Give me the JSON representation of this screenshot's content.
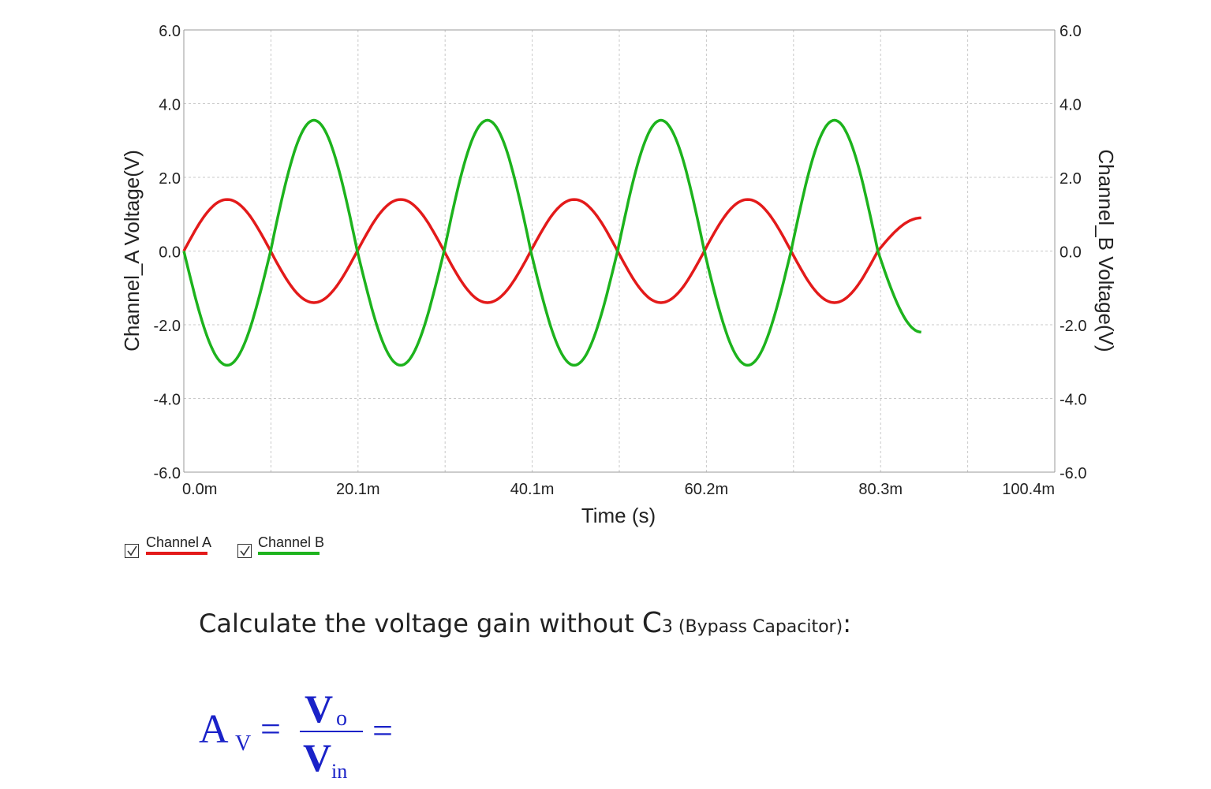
{
  "chart_data": {
    "type": "line",
    "xlabel": "Time (s)",
    "ylabel_left": "Channel_A Voltage(V)",
    "ylabel_right": "Channel_B Voltage(V)",
    "x_ticks": [
      "0.0m",
      "20.1m",
      "40.1m",
      "60.2m",
      "80.3m",
      "100.4m"
    ],
    "y_ticks": [
      "6.0",
      "4.0",
      "2.0",
      "0.0",
      "-2.0",
      "-4.0",
      "-6.0"
    ],
    "xlim": [
      0,
      0.1004
    ],
    "ylim": [
      -6,
      6
    ],
    "grid": true,
    "legend": "bottom-left",
    "series": [
      {
        "name": "Channel A",
        "color": "#e31a1a",
        "x": [
          0,
          0.005,
          0.01,
          0.015,
          0.02,
          0.025,
          0.03,
          0.035,
          0.04,
          0.045,
          0.05,
          0.055,
          0.06,
          0.065,
          0.07,
          0.075,
          0.08,
          0.085
        ],
        "y": [
          0.0,
          1.4,
          0.0,
          -1.4,
          0.0,
          1.4,
          0.0,
          -1.4,
          0.0,
          1.4,
          0.0,
          -1.4,
          0.0,
          1.4,
          0.0,
          -1.4,
          0.0,
          0.9
        ]
      },
      {
        "name": "Channel B",
        "color": "#1db31d",
        "x": [
          0,
          0.005,
          0.01,
          0.015,
          0.02,
          0.025,
          0.03,
          0.035,
          0.04,
          0.045,
          0.05,
          0.055,
          0.06,
          0.065,
          0.07,
          0.075,
          0.08,
          0.085
        ],
        "y": [
          0.0,
          -3.1,
          0.0,
          3.55,
          0.0,
          -3.1,
          0.0,
          3.55,
          0.0,
          -3.1,
          0.0,
          3.55,
          0.0,
          -3.1,
          0.0,
          3.55,
          0.0,
          -2.2
        ]
      }
    ]
  },
  "legend": {
    "channel_a": "Channel A",
    "channel_b": "Channel B"
  },
  "question": {
    "prefix": "Calculate the voltage gain without C",
    "sub": "3",
    "paren": " (Bypass Capacitor)",
    "suffix": ":"
  },
  "formula": {
    "A": "A",
    "A_sub": "V",
    "eq": "=",
    "num": "V",
    "num_sub": "o",
    "den": "V",
    "den_sub": "in",
    "eq2": "="
  }
}
